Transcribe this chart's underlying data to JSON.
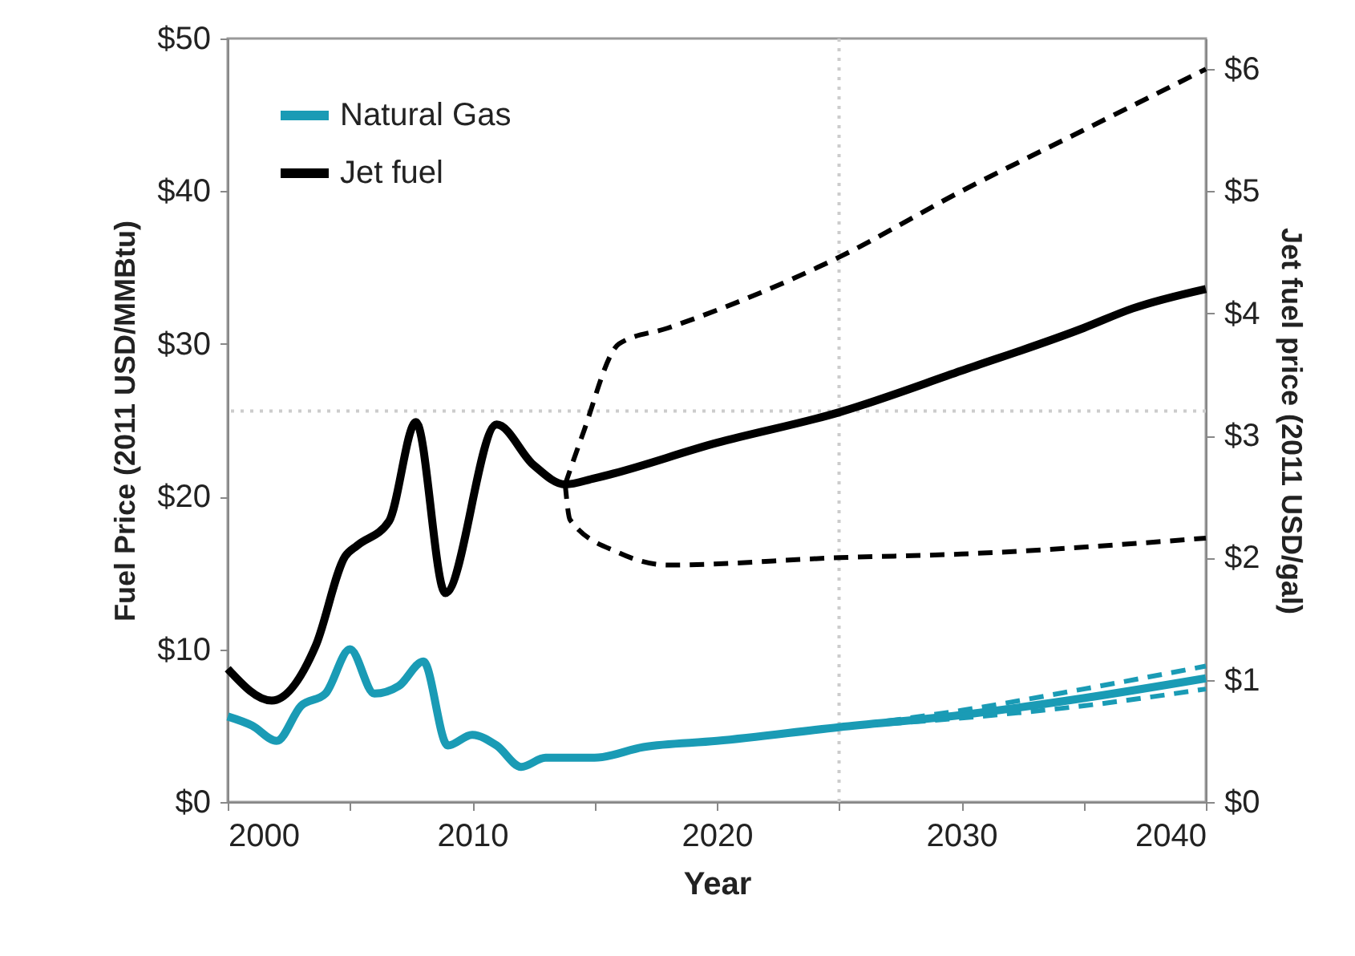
{
  "chart_data": {
    "type": "line",
    "xlabel": "Year",
    "ylabel": "Fuel Price (2011 USD/MMBtu)",
    "y2label": "Jet fuel price (2011 USD/gal)",
    "xlim": [
      2000,
      2040
    ],
    "xticks": [
      2000,
      {
        "value": 2005,
        "label": null
      },
      2010,
      {
        "value": 2015,
        "label": null
      },
      2020,
      {
        "value": 2025,
        "label": null
      },
      2030,
      {
        "value": 2035,
        "label": null
      },
      2040
    ],
    "ylim": [
      0,
      50
    ],
    "yticks": [
      {
        "value": 0,
        "label": "$0"
      },
      {
        "value": 10,
        "label": "$10"
      },
      {
        "value": 20,
        "label": "$20"
      },
      {
        "value": 30,
        "label": "$30"
      },
      {
        "value": 40,
        "label": "$40"
      },
      {
        "value": 50,
        "label": "$50"
      }
    ],
    "y2lim": [
      0,
      6.25
    ],
    "y2ticks": [
      {
        "value": 0,
        "label": "$0"
      },
      {
        "value": 1,
        "label": "$1"
      },
      {
        "value": 2,
        "label": "$2"
      },
      {
        "value": 3,
        "label": "$3"
      },
      {
        "value": 4,
        "label": "$4"
      },
      {
        "value": 5,
        "label": "$5"
      },
      {
        "value": 6,
        "label": "$6"
      }
    ],
    "legend": "top left",
    "grid": false,
    "ref_lines": [
      {
        "axis": "x",
        "value": 2025,
        "color": "#cccccc",
        "line_style": "dotted"
      },
      {
        "axis": "y2",
        "value": 3.2,
        "color": "#cccccc",
        "line_style": "dotted"
      }
    ],
    "series": [
      {
        "name": "Natural Gas",
        "color": "#1a9bb5",
        "line_style": "solid",
        "x": [
          2000,
          2001,
          2002,
          2003,
          2004,
          2005,
          2006,
          2007,
          2008,
          2009,
          2010,
          2011,
          2012,
          2013,
          2015,
          2017,
          2020,
          2025,
          2030,
          2035,
          2040
        ],
        "values": [
          5.6,
          5.0,
          4.0,
          6.3,
          7.1,
          10.0,
          7.1,
          7.6,
          9.2,
          3.7,
          4.4,
          3.7,
          2.3,
          2.9,
          2.9,
          3.6,
          4.0,
          4.9,
          5.7,
          6.8,
          8.1
        ]
      },
      {
        "color": "#1a9bb5",
        "line_style": "dashed",
        "x": [
          2025,
          2030,
          2035,
          2040
        ],
        "values": [
          4.9,
          6.0,
          7.4,
          8.9
        ]
      },
      {
        "color": "#1a9bb5",
        "line_style": "dashed",
        "x": [
          2025,
          2030,
          2035,
          2040
        ],
        "values": [
          4.9,
          5.5,
          6.3,
          7.4
        ]
      },
      {
        "name": "Jet fuel",
        "color": "#000000",
        "line_style": "solid",
        "axis": "y2",
        "x": [
          2000,
          2001.8,
          2003.6,
          2004.8,
          2005.3,
          2006.6,
          2007.7,
          2008.9,
          2011,
          2012.5,
          2013.8,
          2015,
          2020,
          2025,
          2030,
          2035,
          2037,
          2040
        ],
        "values": [
          1.09,
          0.83,
          1.28,
          2.01,
          2.1,
          2.3,
          3.11,
          1.71,
          3.09,
          2.76,
          2.6,
          2.65,
          2.94,
          3.19,
          3.53,
          3.88,
          4.04,
          4.2
        ]
      },
      {
        "color": "#000000",
        "line_style": "dashed",
        "axis": "y2",
        "x": [
          2013.8,
          2014.5,
          2016,
          2018,
          2025,
          2030,
          2035,
          2040
        ],
        "values": [
          2.6,
          3.0,
          3.75,
          3.88,
          4.46,
          5.0,
          5.5,
          6.0
        ]
      },
      {
        "color": "#000000",
        "line_style": "dashed",
        "axis": "y2",
        "x": [
          2013.8,
          2014,
          2016,
          2018,
          2025,
          2030,
          2040
        ],
        "values": [
          2.6,
          2.31,
          2.04,
          1.94,
          2.0,
          2.03,
          2.16
        ]
      }
    ]
  }
}
